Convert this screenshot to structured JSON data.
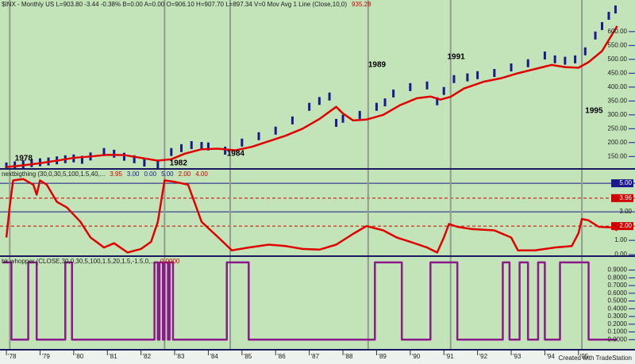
{
  "chart_data": [
    {
      "type": "line",
      "header": [
        {
          "text": "$INX - Monthly  US  L=903.80  -3.44  -0.38%  B=0.00  A=0.00  O=906.10  H=907.70  L=897.34  V=0  Mov Avg 1 Line (Close,10,0)",
          "color": "#202020"
        },
        {
          "text": "935.28",
          "color": "#d00000"
        }
      ],
      "xlim": [
        1977.81,
        1996.16
      ],
      "ylim": [
        108,
        714
      ],
      "yticks": [
        {
          "value": 150,
          "label": "150.00"
        },
        {
          "value": 200,
          "label": "200.00"
        },
        {
          "value": 250,
          "label": "250.00"
        },
        {
          "value": 300,
          "label": "300.00"
        },
        {
          "value": 350,
          "label": "350.00"
        },
        {
          "value": 400,
          "label": "400.00"
        },
        {
          "value": 450,
          "label": "450.00"
        },
        {
          "value": 500,
          "label": "500.00"
        },
        {
          "value": 550,
          "label": "550.00"
        },
        {
          "value": 600,
          "label": "600.00"
        }
      ],
      "markers": [
        1978.1,
        1982.7,
        1984.65,
        1988.75,
        1991.2,
        1995.1
      ],
      "series": [
        {
          "style": "bars",
          "color": "#1a1a8c",
          "x": [
            1978.0,
            1978.25,
            1978.5,
            1978.75,
            1979.0,
            1979.25,
            1979.5,
            1979.75,
            1980.0,
            1980.25,
            1980.5,
            1980.9,
            1981.2,
            1981.5,
            1981.8,
            1982.1,
            1982.5,
            1982.9,
            1983.2,
            1983.5,
            1983.8,
            1984.0,
            1984.5,
            1985.0,
            1985.5,
            1986.0,
            1986.5,
            1987.0,
            1987.3,
            1987.6,
            1987.8,
            1988.0,
            1988.5,
            1989.0,
            1989.25,
            1989.5,
            1990.0,
            1990.5,
            1990.8,
            1991.0,
            1991.3,
            1991.7,
            1992.0,
            1992.5,
            1993.0,
            1993.5,
            1994.0,
            1994.3,
            1994.6,
            1994.9,
            1995.2,
            1995.5,
            1995.7,
            1995.9,
            1996.1
          ],
          "values": [
            114,
            118,
            122,
            126,
            129,
            132,
            136,
            140,
            143,
            138,
            150,
            166,
            160,
            149,
            140,
            128,
            120,
            166,
            180,
            191,
            188,
            186,
            171,
            200,
            223,
            243,
            280,
            329,
            350,
            366,
            271,
            286,
            300,
            329,
            345,
            377,
            400,
            406,
            349,
            386,
            429,
            435,
            443,
            451,
            471,
            486,
            514,
            500,
            495,
            500,
            529,
            586,
            620,
            657,
            680
          ]
        },
        {
          "style": "line",
          "color": "#e00000",
          "x": [
            1978.0,
            1978.5,
            1979.0,
            1979.5,
            1980.0,
            1980.5,
            1981.0,
            1981.5,
            1982.0,
            1982.5,
            1982.9,
            1983.3,
            1983.8,
            1984.3,
            1984.8,
            1985.3,
            1985.8,
            1986.3,
            1986.8,
            1987.3,
            1987.8,
            1988.0,
            1988.3,
            1988.7,
            1989.2,
            1989.7,
            1990.2,
            1990.6,
            1990.9,
            1991.2,
            1991.6,
            1992.2,
            1992.7,
            1993.2,
            1993.7,
            1994.2,
            1994.6,
            1995.0,
            1995.3,
            1995.7,
            1996.15
          ],
          "values": [
            112,
            118,
            126,
            135,
            145,
            150,
            156,
            155,
            145,
            135,
            140,
            160,
            176,
            178,
            172,
            185,
            205,
            225,
            250,
            285,
            329,
            305,
            280,
            283,
            300,
            335,
            360,
            366,
            355,
            365,
            395,
            420,
            432,
            450,
            465,
            480,
            472,
            470,
            490,
            530,
            620
          ]
        }
      ],
      "annotations": [
        {
          "text": "1978",
          "x": 1978.25,
          "y": 143
        },
        {
          "text": "1982",
          "x": 1982.85,
          "y": 126
        },
        {
          "text": "1984",
          "x": 1984.55,
          "y": 160
        },
        {
          "text": "1989",
          "x": 1988.75,
          "y": 480
        },
        {
          "text": "1991",
          "x": 1991.1,
          "y": 509
        },
        {
          "text": "1995",
          "x": 1995.2,
          "y": 314
        }
      ]
    },
    {
      "type": "line",
      "header": [
        {
          "text": "nextbigthing (30,0,30,5,100,1.5,40,...",
          "color": "#202020"
        },
        {
          "text": "3.95",
          "color": "#d00000"
        },
        {
          "text": "3.00",
          "color": "#1a1a8c"
        },
        {
          "text": "0.00",
          "color": "#1a1a8c"
        },
        {
          "text": "5.00",
          "color": "#1a1a8c"
        },
        {
          "text": "2.00",
          "color": "#d00000"
        },
        {
          "text": "4.00",
          "color": "#d00000"
        }
      ],
      "xlim": [
        1977.81,
        1996.16
      ],
      "ylim": [
        -0.05,
        5.95
      ],
      "yticks": [
        {
          "value": 1,
          "label": "1.00"
        },
        {
          "value": 0,
          "label": "0.00"
        }
      ],
      "levels": [
        {
          "value": 5,
          "label": "5.00",
          "color": "#1a1a8c",
          "dashed": false,
          "boxed": true
        },
        {
          "value": 3.96,
          "label": "3.96",
          "color": "#d00000",
          "dashed": true,
          "boxed": true
        },
        {
          "value": 3,
          "label": "3.00",
          "color": "#1a1a8c",
          "dashed": false,
          "boxed": false
        },
        {
          "value": 2,
          "label": "2.00",
          "color": "#d00000",
          "dashed": true,
          "boxed": true
        }
      ],
      "series": [
        {
          "style": "line",
          "color": "#e00000",
          "x": [
            1978.0,
            1978.1,
            1978.2,
            1978.5,
            1978.8,
            1978.9,
            1979.0,
            1979.2,
            1979.5,
            1979.8,
            1980.2,
            1980.5,
            1980.9,
            1981.2,
            1981.6,
            1982.0,
            1982.3,
            1982.5,
            1982.7,
            1983.0,
            1983.4,
            1983.8,
            1984.3,
            1984.7,
            1985.2,
            1985.8,
            1986.3,
            1986.8,
            1987.3,
            1987.8,
            1988.3,
            1988.7,
            1989.2,
            1989.6,
            1990.0,
            1990.5,
            1990.8,
            1991.0,
            1991.15,
            1991.4,
            1991.8,
            1992.5,
            1993.0,
            1993.2,
            1993.7,
            1994.3,
            1994.8,
            1995.0,
            1995.1,
            1995.3,
            1995.6,
            1996.0,
            1996.15
          ],
          "values": [
            1.2,
            3.4,
            5.2,
            5.3,
            4.9,
            4.2,
            5.2,
            4.9,
            3.7,
            3.3,
            2.3,
            1.2,
            0.5,
            0.8,
            0.15,
            0.4,
            0.9,
            2.3,
            5.2,
            5.1,
            4.9,
            2.3,
            1.2,
            0.3,
            0.5,
            0.7,
            0.6,
            0.4,
            0.35,
            0.7,
            1.45,
            2.0,
            1.7,
            1.2,
            0.9,
            0.5,
            0.15,
            1.2,
            2.15,
            1.95,
            1.8,
            1.7,
            1.2,
            0.3,
            0.3,
            0.5,
            0.6,
            1.5,
            2.5,
            2.4,
            1.95,
            1.9,
            1.7
          ]
        }
      ]
    },
    {
      "type": "line",
      "header": [
        {
          "text": "bk whopper (CLOSE,30,0,30,5,100,1.5,20,1.5,-1.5,0,...",
          "color": "#202020"
        },
        {
          "text": "0.0000",
          "color": "#d00000"
        }
      ],
      "xlim": [
        1977.81,
        1996.16
      ],
      "ylim": [
        -0.12,
        1.07
      ],
      "yticks": [
        {
          "value": 0.9,
          "label": "0.9000"
        },
        {
          "value": 0.8,
          "label": "0.8000"
        },
        {
          "value": 0.7,
          "label": "0.7000"
        },
        {
          "value": 0.6,
          "label": "0.6000"
        },
        {
          "value": 0.5,
          "label": "0.5000"
        },
        {
          "value": 0.4,
          "label": "0.4000"
        },
        {
          "value": 0.3,
          "label": "0.3000"
        },
        {
          "value": 0.2,
          "label": "0.2000"
        },
        {
          "value": 0.1,
          "label": "0.1000"
        },
        {
          "value": 0,
          "label": "0.0000"
        }
      ],
      "xticks": [
        {
          "value": 1978,
          "label": "'78"
        },
        {
          "value": 1979,
          "label": "'79"
        },
        {
          "value": 1980,
          "label": "'80"
        },
        {
          "value": 1981,
          "label": "'81"
        },
        {
          "value": 1982,
          "label": "'82"
        },
        {
          "value": 1983,
          "label": "'83"
        },
        {
          "value": 1984,
          "label": "'84"
        },
        {
          "value": 1985,
          "label": "'85"
        },
        {
          "value": 1986,
          "label": "'86"
        },
        {
          "value": 1987,
          "label": "'87"
        },
        {
          "value": 1988,
          "label": "'88"
        },
        {
          "value": 1989,
          "label": "'89"
        },
        {
          "value": 1990,
          "label": "'90"
        },
        {
          "value": 1991,
          "label": "'91"
        },
        {
          "value": 1992,
          "label": "'92"
        },
        {
          "value": 1993,
          "label": "'93"
        },
        {
          "value": 1994,
          "label": "'94"
        },
        {
          "value": 1995,
          "label": "'95"
        }
      ],
      "footer": "Created with TradeStation",
      "series": [
        {
          "style": "line",
          "color": "#8a1a8a",
          "x": [
            1977.9,
            1978.15,
            1978.15,
            1978.65,
            1978.65,
            1978.9,
            1978.9,
            1979.75,
            1979.75,
            1979.95,
            1979.95,
            1982.4,
            1982.4,
            1982.5,
            1982.5,
            1982.55,
            1982.55,
            1982.65,
            1982.65,
            1982.7,
            1982.7,
            1982.8,
            1982.8,
            1982.85,
            1982.85,
            1982.95,
            1982.95,
            1984.55,
            1984.55,
            1985.2,
            1985.2,
            1988.95,
            1988.95,
            1989.75,
            1989.75,
            1990.6,
            1990.6,
            1991.4,
            1991.4,
            1992.75,
            1992.75,
            1992.95,
            1992.95,
            1993.25,
            1993.25,
            1993.5,
            1993.5,
            1993.8,
            1993.8,
            1994.0,
            1994.0,
            1994.45,
            1994.45,
            1995.3,
            1995.3,
            1996.15
          ],
          "values": [
            1,
            1,
            0,
            0,
            1,
            1,
            0,
            0,
            1,
            1,
            0,
            0,
            1,
            1,
            0,
            0,
            1,
            1,
            0,
            0,
            1,
            1,
            0,
            0,
            1,
            1,
            0,
            0,
            1,
            1,
            0,
            0,
            1,
            1,
            0,
            0,
            1,
            1,
            0,
            0,
            1,
            1,
            0,
            0,
            1,
            1,
            0,
            0,
            1,
            1,
            0,
            0,
            1,
            1,
            0,
            0
          ]
        }
      ]
    }
  ]
}
